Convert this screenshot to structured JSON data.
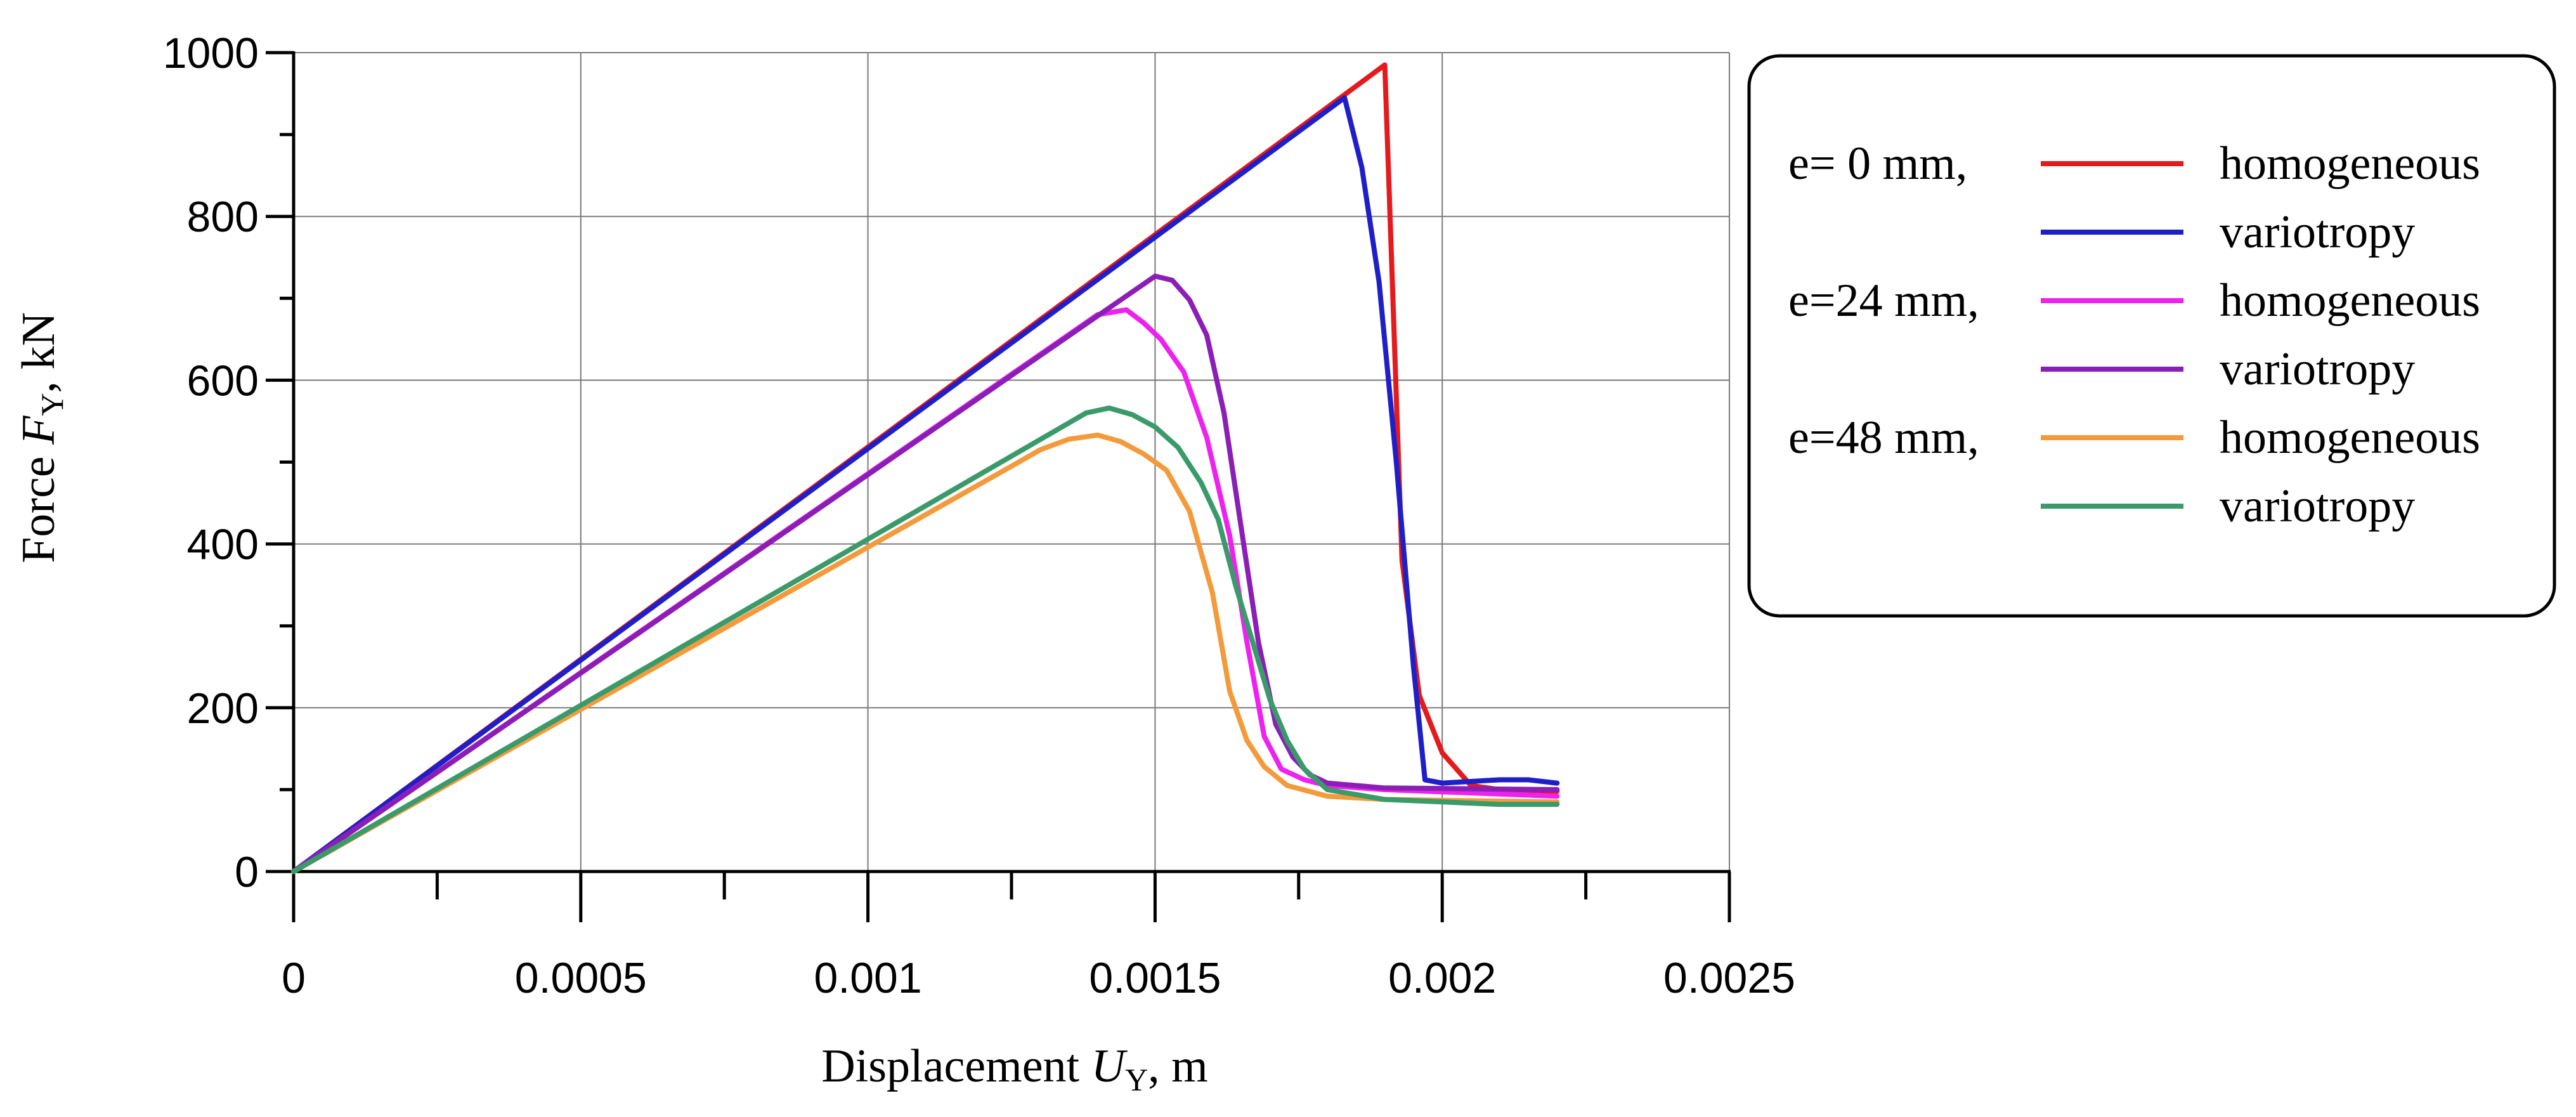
{
  "chart_data": {
    "type": "line",
    "title": "",
    "xlabel": {
      "prefix": "Displacement ",
      "symbol": "U",
      "sub": "Y",
      "suffix": ", m"
    },
    "ylabel": {
      "prefix": "Force ",
      "symbol": "F",
      "sub": "Y",
      "suffix": ", kN"
    },
    "xlim": [
      0,
      0.0025
    ],
    "ylim": [
      0,
      1000
    ],
    "xticks": [
      0,
      0.0005,
      0.001,
      0.0015,
      0.002,
      0.0025
    ],
    "xtick_labels": [
      "0",
      "0.0005",
      "0.001",
      "0.0015",
      "0.002",
      "0.0025"
    ],
    "yticks": [
      0,
      200,
      400,
      600,
      800,
      1000
    ],
    "ytick_labels": [
      "0",
      "200",
      "400",
      "600",
      "800",
      "1000"
    ],
    "grid": true,
    "legend_position": "right",
    "legend_groups": [
      {
        "label": "e= 0 mm,",
        "series": [
          0,
          1
        ]
      },
      {
        "label": "e=24 mm,",
        "series": [
          2,
          3
        ]
      },
      {
        "label": "e=48 mm,",
        "series": [
          4,
          5
        ]
      }
    ],
    "series": [
      {
        "name": "homogeneous",
        "group": "e= 0 mm",
        "color": "#e41a1c",
        "points": [
          [
            0,
            0
          ],
          [
            0.0019,
            985
          ],
          [
            0.00193,
            380
          ],
          [
            0.00196,
            215
          ],
          [
            0.002,
            145
          ],
          [
            0.00205,
            105
          ],
          [
            0.0021,
            100
          ],
          [
            0.0022,
            98
          ]
        ]
      },
      {
        "name": "variotropy",
        "group": "e= 0 mm",
        "color": "#1f1fc8",
        "points": [
          [
            0,
            0
          ],
          [
            0.00183,
            945
          ],
          [
            0.00186,
            860
          ],
          [
            0.00189,
            720
          ],
          [
            0.00192,
            500
          ],
          [
            0.00195,
            250
          ],
          [
            0.00197,
            112
          ],
          [
            0.002,
            108
          ],
          [
            0.0021,
            112
          ],
          [
            0.00215,
            112
          ],
          [
            0.0022,
            108
          ]
        ]
      },
      {
        "name": "homogeneous",
        "group": "e=24 mm",
        "color": "#ee22ee",
        "points": [
          [
            0,
            0
          ],
          [
            0.0014,
            680
          ],
          [
            0.00145,
            686
          ],
          [
            0.00148,
            670
          ],
          [
            0.00151,
            650
          ],
          [
            0.00155,
            610
          ],
          [
            0.00159,
            530
          ],
          [
            0.00163,
            410
          ],
          [
            0.00166,
            280
          ],
          [
            0.00169,
            165
          ],
          [
            0.00172,
            125
          ],
          [
            0.00176,
            112
          ],
          [
            0.0018,
            105
          ],
          [
            0.0019,
            100
          ],
          [
            0.0022,
            92
          ]
        ]
      },
      {
        "name": "variotropy",
        "group": "e=24 mm",
        "color": "#8b1fb5",
        "points": [
          [
            0,
            0
          ],
          [
            0.0015,
            727
          ],
          [
            0.00153,
            722
          ],
          [
            0.00156,
            698
          ],
          [
            0.00159,
            655
          ],
          [
            0.00162,
            560
          ],
          [
            0.00165,
            420
          ],
          [
            0.00168,
            280
          ],
          [
            0.00171,
            180
          ],
          [
            0.00174,
            140
          ],
          [
            0.00177,
            118
          ],
          [
            0.0018,
            108
          ],
          [
            0.0019,
            102
          ],
          [
            0.0022,
            100
          ]
        ]
      },
      {
        "name": "homogeneous",
        "group": "e=48 mm",
        "color": "#f39a3c",
        "points": [
          [
            0,
            0
          ],
          [
            0.00125,
            495
          ],
          [
            0.0013,
            515
          ],
          [
            0.00135,
            528
          ],
          [
            0.0014,
            533
          ],
          [
            0.00144,
            525
          ],
          [
            0.00148,
            510
          ],
          [
            0.00152,
            490
          ],
          [
            0.00156,
            440
          ],
          [
            0.0016,
            340
          ],
          [
            0.00163,
            220
          ],
          [
            0.00166,
            160
          ],
          [
            0.00169,
            128
          ],
          [
            0.00173,
            105
          ],
          [
            0.0018,
            92
          ],
          [
            0.0019,
            88
          ],
          [
            0.0022,
            85
          ]
        ]
      },
      {
        "name": "variotropy",
        "group": "e=48 mm",
        "color": "#3a9a6a",
        "points": [
          [
            0,
            0
          ],
          [
            0.00138,
            560
          ],
          [
            0.00142,
            566
          ],
          [
            0.00146,
            558
          ],
          [
            0.0015,
            543
          ],
          [
            0.00154,
            518
          ],
          [
            0.00158,
            475
          ],
          [
            0.00161,
            430
          ],
          [
            0.00164,
            350
          ],
          [
            0.00167,
            280
          ],
          [
            0.0017,
            210
          ],
          [
            0.00173,
            160
          ],
          [
            0.00176,
            125
          ],
          [
            0.0018,
            100
          ],
          [
            0.0019,
            88
          ],
          [
            0.0021,
            82
          ],
          [
            0.0022,
            82
          ]
        ]
      }
    ]
  }
}
